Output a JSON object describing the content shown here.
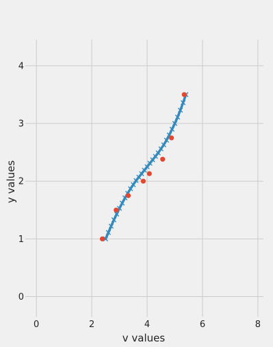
{
  "chart_data": {
    "type": "scatter",
    "title": "",
    "xlabel": "v values",
    "ylabel": "y values",
    "xlim": [
      -0.4,
      8.2
    ],
    "ylim": [
      -0.35,
      4.45
    ],
    "xticks": [
      "0",
      "2",
      "4",
      "6",
      "8"
    ],
    "xtick_values": [
      0,
      2,
      4,
      6,
      8
    ],
    "yticks": [
      "0",
      "1",
      "2",
      "3",
      "4"
    ],
    "ytick_values": [
      0,
      1,
      2,
      3,
      4
    ],
    "grid": true,
    "series": [
      {
        "kind": "points",
        "color": "#e5462f",
        "x": [
          2.38,
          2.88,
          3.32,
          3.86,
          4.08,
          4.56,
          4.88,
          5.34
        ],
        "y": [
          1.0,
          1.5,
          1.75,
          2.0,
          2.13,
          2.38,
          2.75,
          3.5
        ]
      },
      {
        "kind": "curve",
        "color": "#348abd",
        "x": [
          2.5,
          2.6,
          2.7,
          2.8,
          2.9,
          3.0,
          3.1,
          3.2,
          3.3,
          3.4,
          3.5,
          3.6,
          3.7,
          3.8,
          3.9,
          4.0,
          4.1,
          4.2,
          4.3,
          4.4,
          4.5,
          4.6,
          4.7,
          4.8,
          4.9,
          5.0,
          5.1,
          5.2,
          5.3,
          5.4
        ],
        "y": [
          1.0,
          1.11,
          1.22,
          1.33,
          1.43,
          1.53,
          1.62,
          1.71,
          1.79,
          1.87,
          1.94,
          2.01,
          2.07,
          2.13,
          2.19,
          2.25,
          2.31,
          2.37,
          2.43,
          2.49,
          2.56,
          2.63,
          2.71,
          2.8,
          2.9,
          3.0,
          3.11,
          3.23,
          3.36,
          3.5
        ]
      }
    ]
  }
}
